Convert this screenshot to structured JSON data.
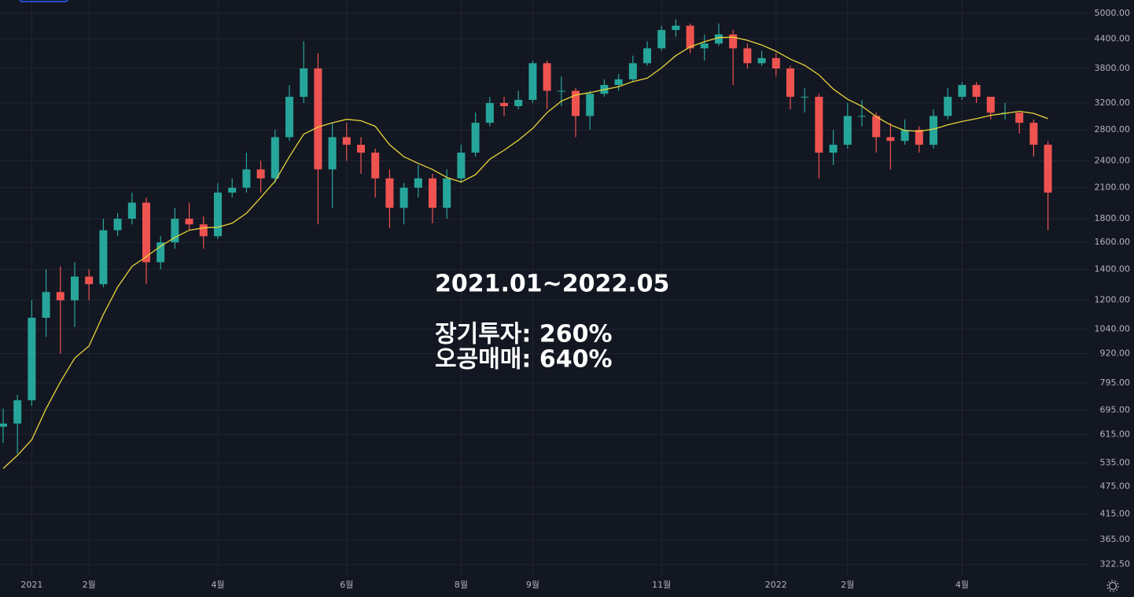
{
  "chart_data": {
    "type": "candlestick",
    "categories": [
      null,
      null,
      "2021",
      null,
      null,
      null,
      "2월",
      null,
      null,
      null,
      null,
      null,
      null,
      null,
      null,
      "4월",
      null,
      null,
      null,
      null,
      null,
      null,
      null,
      null,
      "6월",
      null,
      null,
      null,
      null,
      null,
      null,
      null,
      "8월",
      null,
      null,
      null,
      null,
      "9월",
      null,
      null,
      null,
      null,
      null,
      null,
      null,
      null,
      "11월",
      null,
      null,
      null,
      null,
      null,
      null,
      null,
      "2022",
      null,
      null,
      null,
      null,
      "2월",
      null,
      null,
      null,
      null,
      null,
      null,
      null,
      "4월",
      null,
      null,
      null,
      null,
      null,
      null
    ],
    "open": [
      640,
      650,
      730,
      1100,
      1250,
      1200,
      1350,
      1300,
      1700,
      1800,
      1950,
      1450,
      1600,
      1800,
      1750,
      1650,
      2050,
      2100,
      2300,
      2200,
      2700,
      3300,
      3800,
      2300,
      2700,
      2600,
      2500,
      2200,
      1900,
      2100,
      2200,
      1900,
      2200,
      2500,
      2900,
      3200,
      3150,
      3250,
      3900,
      3400,
      3400,
      3000,
      3350,
      3500,
      3600,
      3900,
      4200,
      4600,
      4700,
      4200,
      4300,
      4500,
      4200,
      3900,
      4000,
      3800,
      3300,
      3300,
      2500,
      2600,
      3000,
      3000,
      2700,
      2650,
      2800,
      2600,
      3000,
      3300,
      3500,
      3300,
      3050,
      3050,
      2900,
      2600
    ],
    "high": [
      700,
      750,
      1200,
      1400,
      1420,
      1450,
      1400,
      1800,
      1850,
      2050,
      2000,
      1650,
      1900,
      1950,
      1820,
      2150,
      2200,
      2500,
      2400,
      2800,
      3500,
      4350,
      4100,
      2900,
      2900,
      2700,
      2550,
      2300,
      2150,
      2350,
      2250,
      2300,
      2600,
      3050,
      3300,
      3300,
      3400,
      3950,
      3950,
      3650,
      3450,
      3400,
      3600,
      3700,
      4050,
      4350,
      4700,
      4850,
      4750,
      4500,
      4750,
      4600,
      4300,
      4150,
      4100,
      3850,
      3450,
      3350,
      2800,
      3200,
      3250,
      3050,
      2900,
      2950,
      2850,
      3100,
      3450,
      3550,
      3550,
      3300,
      3200,
      3000,
      2950,
      2650
    ],
    "low": [
      590,
      560,
      710,
      1000,
      920,
      1050,
      1200,
      1280,
      1650,
      1750,
      1300,
      1400,
      1550,
      1700,
      1550,
      1630,
      2000,
      2050,
      2050,
      2150,
      2650,
      3200,
      1750,
      1900,
      2400,
      2250,
      2000,
      1720,
      1750,
      2000,
      1760,
      1800,
      2150,
      2450,
      2850,
      3000,
      3100,
      3200,
      3100,
      3150,
      2700,
      2800,
      3300,
      3400,
      3550,
      3850,
      4150,
      4450,
      4100,
      3950,
      4250,
      3500,
      3800,
      3850,
      3650,
      3100,
      3050,
      2200,
      2350,
      2550,
      2850,
      2500,
      2300,
      2600,
      2500,
      2550,
      2950,
      3250,
      3200,
      2950,
      2950,
      2750,
      2450,
      1700
    ],
    "close": [
      650,
      730,
      1100,
      1250,
      1200,
      1350,
      1300,
      1700,
      1800,
      1950,
      1450,
      1600,
      1800,
      1750,
      1650,
      2050,
      2100,
      2300,
      2200,
      2700,
      3300,
      3800,
      2300,
      2700,
      2600,
      2500,
      2200,
      1900,
      2100,
      2200,
      1900,
      2200,
      2500,
      2900,
      3200,
      3150,
      3250,
      3900,
      3400,
      3400,
      3000,
      3350,
      3500,
      3600,
      3900,
      4200,
      4600,
      4700,
      4200,
      4300,
      4500,
      4200,
      3900,
      4000,
      3800,
      3300,
      3300,
      2500,
      2600,
      3000,
      3000,
      2700,
      2650,
      2800,
      2600,
      3000,
      3300,
      3500,
      3300,
      3050,
      3050,
      2900,
      2600,
      2050
    ],
    "up_color": "#26a69a",
    "down_color": "#ef5350",
    "ma": {
      "color": "#e8d43a",
      "values": [
        520,
        555,
        600,
        700,
        800,
        900,
        956,
        1118,
        1281,
        1420,
        1490,
        1570,
        1640,
        1700,
        1720,
        1725,
        1760,
        1850,
        2000,
        2170,
        2450,
        2740,
        2840,
        2900,
        2950,
        2930,
        2850,
        2600,
        2450,
        2370,
        2300,
        2210,
        2160,
        2240,
        2420,
        2530,
        2660,
        2820,
        3050,
        3230,
        3330,
        3370,
        3420,
        3470,
        3560,
        3620,
        3810,
        4050,
        4230,
        4340,
        4430,
        4440,
        4370,
        4270,
        4140,
        3980,
        3860,
        3680,
        3430,
        3260,
        3150,
        2990,
        2870,
        2790,
        2780,
        2810,
        2870,
        2920,
        2960,
        3010,
        3040,
        3070,
        3040,
        2960
      ]
    },
    "log_scale": true,
    "grid": true,
    "ylim": [
      305,
      5340
    ],
    "yticks": [
      {
        "value": 5000,
        "label": "5000.00"
      },
      {
        "value": 4400,
        "label": "4400.00"
      },
      {
        "value": 3800,
        "label": "3800.00"
      },
      {
        "value": 3200,
        "label": "3200.00"
      },
      {
        "value": 2800,
        "label": "2800.00"
      },
      {
        "value": 2400,
        "label": "2400.00"
      },
      {
        "value": 2100,
        "label": "2100.00"
      },
      {
        "value": 1800,
        "label": "1800.00"
      },
      {
        "value": 1600,
        "label": "1600.00"
      },
      {
        "value": 1400,
        "label": "1400.00"
      },
      {
        "value": 1200,
        "label": "1200.00"
      },
      {
        "value": 1040,
        "label": "1040.00"
      },
      {
        "value": 920,
        "label": "920.00"
      },
      {
        "value": 795,
        "label": "795.00"
      },
      {
        "value": 695,
        "label": "695.00"
      },
      {
        "value": 615,
        "label": "615.00"
      },
      {
        "value": 535,
        "label": "535.00"
      },
      {
        "value": 475,
        "label": "475.00"
      },
      {
        "value": 415,
        "label": "415.00"
      },
      {
        "value": 365,
        "label": "365.00"
      },
      {
        "value": 322.5,
        "label": "322.50"
      }
    ],
    "annotations": [
      "2021.01~2022.05",
      "장기투자: 260%",
      "오공매매: 640%"
    ]
  }
}
